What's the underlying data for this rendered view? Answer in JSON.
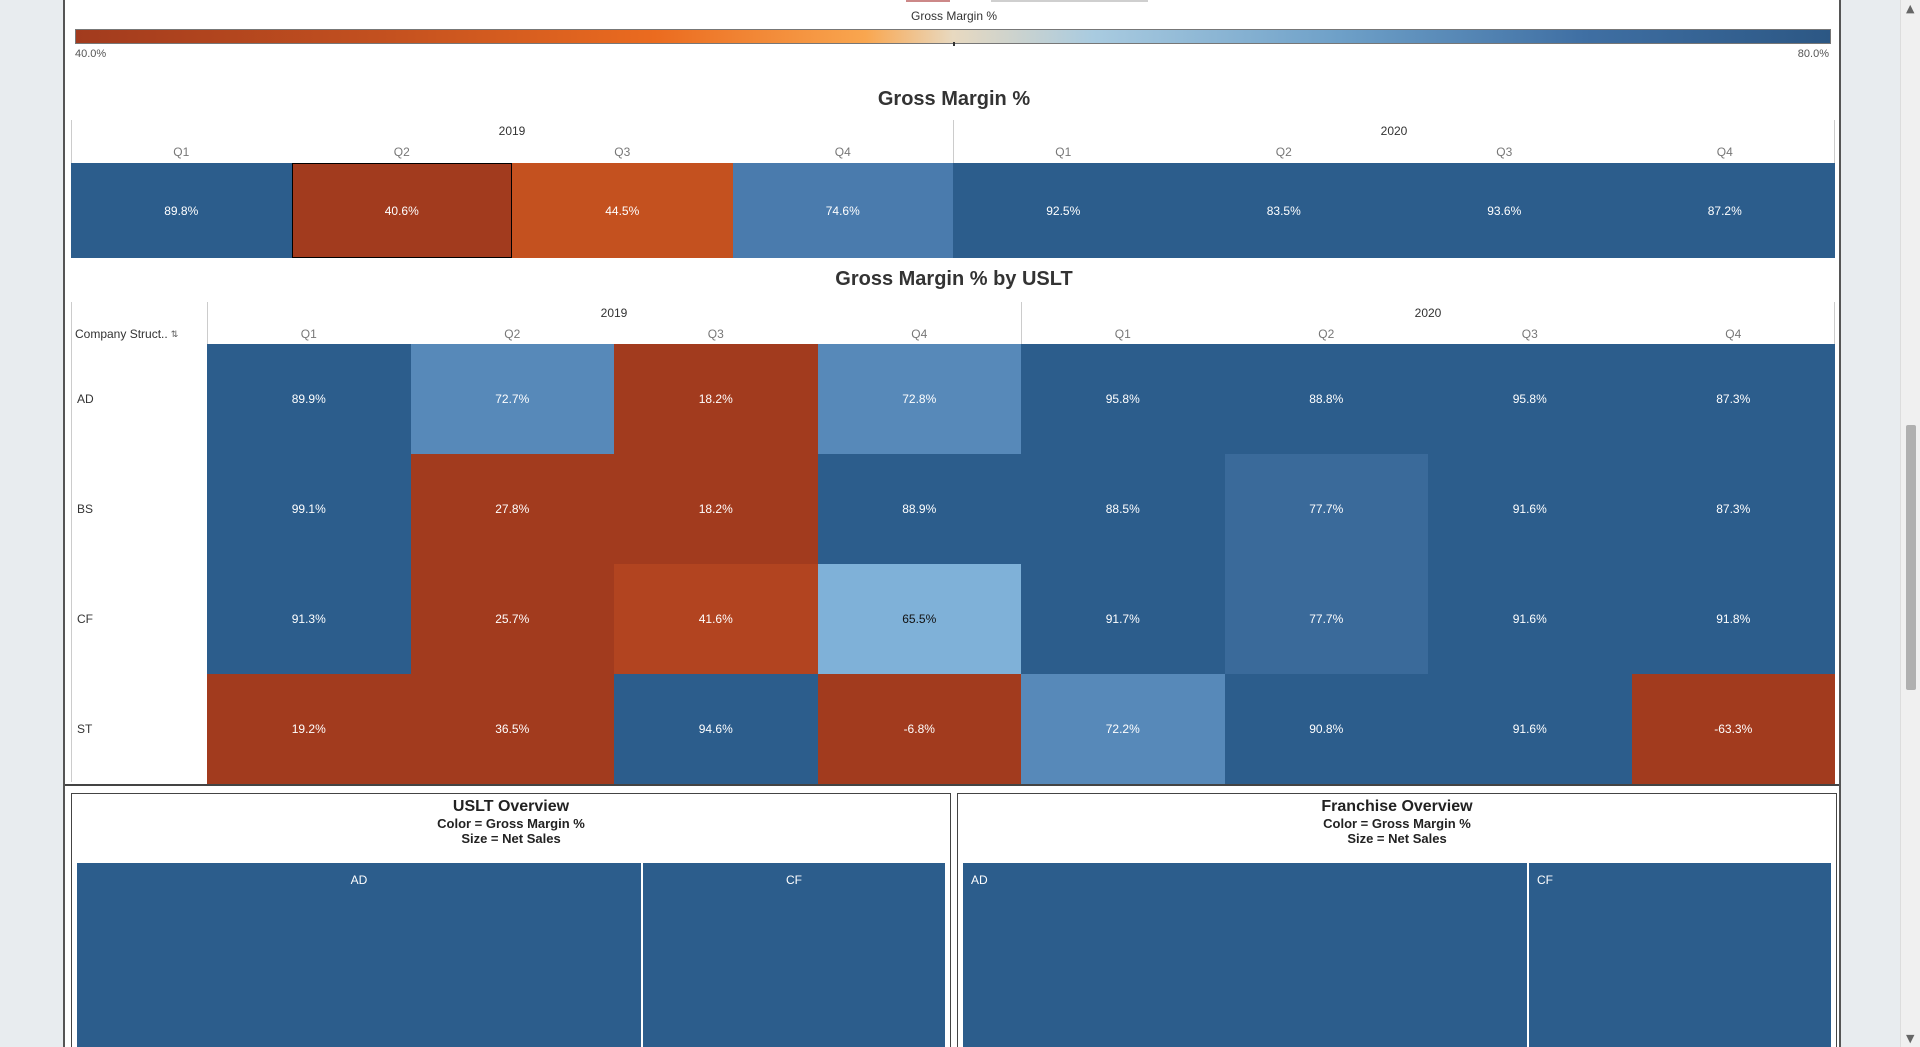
{
  "legend": {
    "title": "Gross Margin %",
    "min_label": "40.0%",
    "max_label": "80.0%"
  },
  "gm_section": {
    "title": "Gross Margin %",
    "years": [
      "2019",
      "2020"
    ],
    "quarters": [
      "Q1",
      "Q2",
      "Q3",
      "Q4",
      "Q1",
      "Q2",
      "Q3",
      "Q4"
    ],
    "values": [
      "89.8%",
      "40.6%",
      "44.5%",
      "74.6%",
      "92.5%",
      "83.5%",
      "93.6%",
      "87.2%"
    ],
    "colors": [
      "#2c5d8c",
      "#a23b1e",
      "#c4511f",
      "#4a7bad",
      "#2c5d8c",
      "#2c5d8c",
      "#2c5d8c",
      "#2c5d8c"
    ]
  },
  "uslt_section": {
    "title": "Gross Margin % by USLT",
    "row_header": "Company Struct..",
    "sort_icon": "sort-icon",
    "years": [
      "2019",
      "2020"
    ],
    "quarters": [
      "Q1",
      "Q2",
      "Q3",
      "Q4",
      "Q1",
      "Q2",
      "Q3",
      "Q4"
    ],
    "rows": [
      {
        "label": "AD",
        "values": [
          "89.9%",
          "72.7%",
          "18.2%",
          "72.8%",
          "95.8%",
          "88.8%",
          "95.8%",
          "87.3%"
        ],
        "colors": [
          "#2c5d8c",
          "#5789b9",
          "#a23b1e",
          "#5789b9",
          "#2c5d8c",
          "#2c5d8c",
          "#2c5d8c",
          "#2c5d8c"
        ]
      },
      {
        "label": "BS",
        "values": [
          "99.1%",
          "27.8%",
          "18.2%",
          "88.9%",
          "88.5%",
          "77.7%",
          "91.6%",
          "87.3%"
        ],
        "colors": [
          "#2c5d8c",
          "#a23b1e",
          "#a23b1e",
          "#2c5d8c",
          "#2c5d8c",
          "#3a6a9a",
          "#2c5d8c",
          "#2c5d8c"
        ]
      },
      {
        "label": "CF",
        "values": [
          "91.3%",
          "25.7%",
          "41.6%",
          "65.5%",
          "91.7%",
          "77.7%",
          "91.6%",
          "91.8%"
        ],
        "colors": [
          "#2c5d8c",
          "#a23b1e",
          "#b24420",
          "#7fb1d8",
          "#2c5d8c",
          "#3a6a9a",
          "#2c5d8c",
          "#2c5d8c"
        ]
      },
      {
        "label": "ST",
        "values": [
          "19.2%",
          "36.5%",
          "94.6%",
          "-6.8%",
          "72.2%",
          "90.8%",
          "91.6%",
          "-63.3%"
        ],
        "colors": [
          "#a23b1e",
          "#a23b1e",
          "#2c5d8c",
          "#a23b1e",
          "#5789b9",
          "#2c5d8c",
          "#2c5d8c",
          "#a23b1e"
        ]
      }
    ]
  },
  "uslt_overview": {
    "title": "USLT Overview",
    "color_line": "Color = Gross Margin %",
    "size_line": "Size = Net Sales",
    "tiles": [
      "AD",
      "CF"
    ]
  },
  "franchise_overview": {
    "title": "Franchise Overview",
    "color_line": "Color = Gross Margin %",
    "size_line": "Size = Net Sales",
    "tiles": [
      "AD",
      "CF"
    ]
  },
  "colors": {
    "dark_blue": "#2c5d8c",
    "dark_orange": "#a23b1e"
  }
}
